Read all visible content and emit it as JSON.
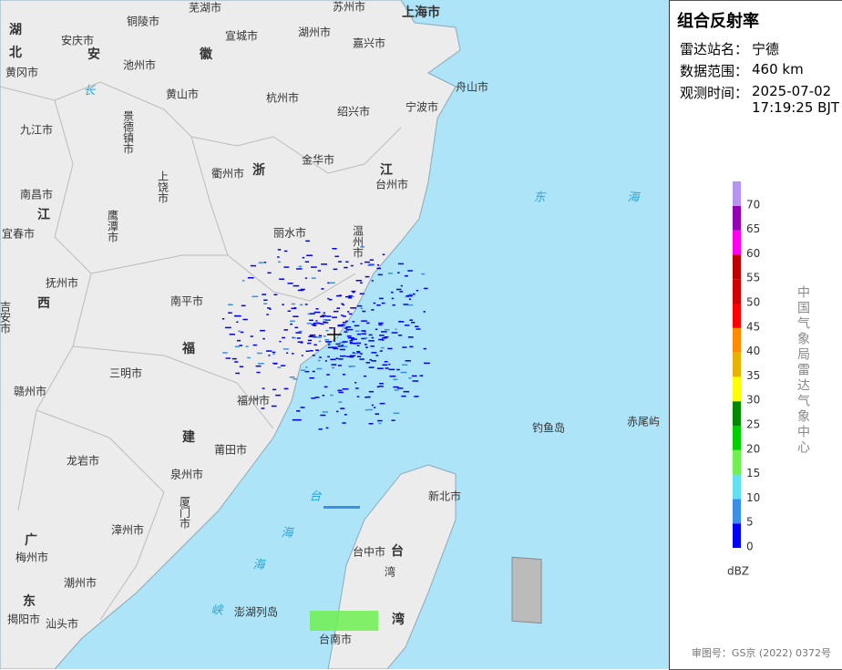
{
  "panel": {
    "title": "组合反射率",
    "fields": [
      {
        "label": "雷达站名：",
        "value": [
          "宁德"
        ]
      },
      {
        "label": "数据范围：",
        "value": [
          "460 km"
        ]
      },
      {
        "label": "观测时间：",
        "value": [
          "2025-07-02",
          "17:19:25 BJT"
        ]
      }
    ],
    "legend": {
      "unit": "dBZ",
      "ticks": [
        0,
        5,
        10,
        15,
        20,
        25,
        30,
        35,
        40,
        45,
        50,
        55,
        60,
        65,
        70
      ],
      "colors": [
        "#0000f6",
        "#3a8fe8",
        "#62e2f0",
        "#6ef050",
        "#00d000",
        "#008a00",
        "#ffff00",
        "#e6b400",
        "#ff8c00",
        "#ff0000",
        "#d20000",
        "#c00000",
        "#ff00f0",
        "#9600b4",
        "#b496f0"
      ]
    },
    "credit": "中国气象局雷达气象中心",
    "approval": "审图号：GS京 (2022) 0372号"
  },
  "map": {
    "labels": [
      "苏州市",
      "上海市",
      "芜湖市",
      "铜陵市",
      "湖",
      "北",
      "安庆市",
      "安",
      "宣城市",
      "湖州市",
      "嘉兴市",
      "徽",
      "池州市",
      "黄冈市",
      "长",
      "黄山市",
      "杭州市",
      "舟山市",
      "绍兴市",
      "宁波市",
      "九江市",
      "景德镇市",
      "衢州市",
      "浙",
      "金华市",
      "江",
      "台州市",
      "上饶市",
      "南昌市",
      "江",
      "鹰潭市",
      "宜春市",
      "丽水市",
      "温州市",
      "东",
      "海",
      "抚州市",
      "西",
      "南平市",
      "吉安市",
      "福",
      "三明市",
      "赣州市",
      "福州市",
      "钓鱼岛",
      "赤尾屿",
      "建",
      "莆田市",
      "龙岩市",
      "泉州市",
      "新北市",
      "台",
      "厦门市",
      "漳州市",
      "广",
      "梅州市",
      "台中市",
      "台",
      "湾",
      "海",
      "潮州市",
      "东",
      "澎湖列岛",
      "揭阳市",
      "汕头市",
      "台南市",
      "湾",
      "海",
      "峡"
    ]
  }
}
